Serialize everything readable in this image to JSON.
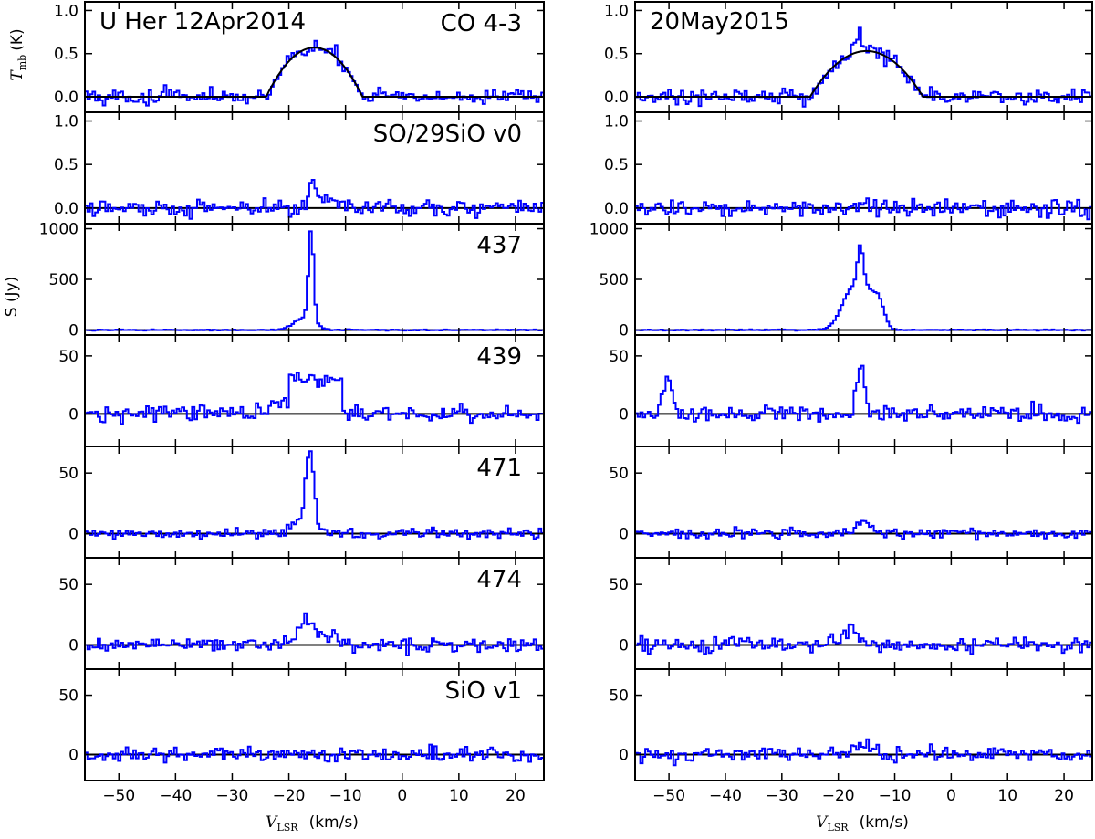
{
  "chart_data": {
    "type": "line",
    "line_color": "#0000ff",
    "fit_color": "#000000",
    "xlim": [
      -56,
      25
    ],
    "x_ticks": [
      -50,
      -40,
      -30,
      -20,
      -10,
      0,
      10,
      20
    ],
    "x_tick_labels": [
      "−50",
      "−40",
      "−30",
      "−20",
      "−10",
      "0",
      "10",
      "20"
    ],
    "xlabel_symbol": "V",
    "xlabel_sub": "LSR",
    "xlabel_unit": "(km/s)",
    "ylabel_tmb_symbol": "T",
    "ylabel_tmb_sub": "mb",
    "ylabel_tmb_unit": "(K)",
    "ylabel_s": "S (Jy)",
    "columns": [
      {
        "title": "U Her 12Apr2014",
        "epoch": "2014-04-12"
      },
      {
        "title": "20May2015",
        "epoch": "2015-05-20"
      }
    ],
    "rows": [
      {
        "label": "CO 4-3",
        "ylim": [
          -0.18,
          1.1
        ],
        "y_ticks": [
          0.0,
          0.5,
          1.0
        ],
        "y_tick_labels": [
          "0.0",
          "0.5",
          "1.0"
        ],
        "zero_line": false,
        "noise": 0.06,
        "series": [
          {
            "profile": [
              {
                "shape": "parabola",
                "center": -15.5,
                "halfwidth": 8.5,
                "peak": 0.57
              }
            ],
            "fit": {
              "center": -15.5,
              "halfwidth": 8.5,
              "peak": 0.57
            }
          },
          {
            "profile": [
              {
                "shape": "parabola",
                "center": -15.0,
                "halfwidth": 10.0,
                "peak": 0.55
              },
              {
                "shape": "gauss",
                "center": -16.5,
                "width": 0.4,
                "peak": 0.25
              }
            ],
            "fit": {
              "center": -15.0,
              "halfwidth": 10.0,
              "peak": 0.53
            }
          }
        ]
      },
      {
        "label": "SO/29SiO v0",
        "ylim": [
          -0.18,
          1.1
        ],
        "y_ticks": [
          0.0,
          0.5,
          1.0
        ],
        "y_tick_labels": [
          "0.0",
          "0.5",
          "1.0"
        ],
        "zero_line": true,
        "noise": 0.07,
        "series": [
          {
            "profile": [
              {
                "shape": "gauss",
                "center": -16.0,
                "width": 0.5,
                "peak": 0.3
              },
              {
                "shape": "gauss",
                "center": -13.0,
                "width": 2.0,
                "peak": 0.12
              }
            ],
            "fit": null
          },
          {
            "profile": [],
            "fit": null
          }
        ]
      },
      {
        "label": "437",
        "ylim": [
          -50,
          1050
        ],
        "y_ticks": [
          0,
          500,
          1000
        ],
        "y_tick_labels": [
          "0",
          "500",
          "1000"
        ],
        "zero_line": true,
        "noise": 4,
        "series": [
          {
            "profile": [
              {
                "shape": "gauss",
                "center": -16.3,
                "width": 0.45,
                "peak": 900
              },
              {
                "shape": "gauss",
                "center": -17.5,
                "width": 1.8,
                "peak": 120
              }
            ],
            "fit": null
          },
          {
            "profile": [
              {
                "shape": "gauss",
                "center": -16.3,
                "width": 0.5,
                "peak": 380
              },
              {
                "shape": "gauss",
                "center": -17.5,
                "width": 2.0,
                "peak": 420
              },
              {
                "shape": "gauss",
                "center": -13.0,
                "width": 1.0,
                "peak": 250
              },
              {
                "shape": "gauss",
                "center": -15.0,
                "width": 1.2,
                "peak": 200
              }
            ],
            "fit": null
          }
        ]
      },
      {
        "label": "439",
        "ylim": [
          -28,
          68
        ],
        "y_ticks": [
          0,
          50
        ],
        "y_tick_labels": [
          "0",
          "50"
        ],
        "zero_line": true,
        "noise": 5,
        "series": [
          {
            "profile": [
              {
                "shape": "box",
                "start": -20.0,
                "end": -10.8,
                "peak": 30
              },
              {
                "shape": "gauss",
                "center": -22.0,
                "width": 1.5,
                "peak": 12
              }
            ],
            "fit": null
          },
          {
            "profile": [
              {
                "shape": "gauss",
                "center": -16.3,
                "width": 0.7,
                "peak": 45
              },
              {
                "shape": "gauss",
                "center": -50.5,
                "width": 0.8,
                "peak": 30
              }
            ],
            "fit": null
          }
        ]
      },
      {
        "label": "471",
        "ylim": [
          -20,
          72
        ],
        "y_ticks": [
          0,
          50
        ],
        "y_tick_labels": [
          "0",
          "50"
        ],
        "zero_line": true,
        "noise": 3,
        "series": [
          {
            "profile": [
              {
                "shape": "gauss",
                "center": -16.5,
                "width": 0.7,
                "peak": 58
              },
              {
                "shape": "gauss",
                "center": -17.5,
                "width": 1.8,
                "peak": 12
              }
            ],
            "fit": null
          },
          {
            "profile": [
              {
                "shape": "gauss",
                "center": -15.5,
                "width": 1.2,
                "peak": 12
              }
            ],
            "fit": null
          }
        ]
      },
      {
        "label": "474",
        "ylim": [
          -20,
          72
        ],
        "y_ticks": [
          0,
          50
        ],
        "y_tick_labels": [
          "0",
          "50"
        ],
        "zero_line": true,
        "noise": 4,
        "series": [
          {
            "profile": [
              {
                "shape": "gauss",
                "center": -17.0,
                "width": 1.5,
                "peak": 20
              },
              {
                "shape": "gauss",
                "center": -13.0,
                "width": 1.2,
                "peak": 8
              }
            ],
            "fit": null
          },
          {
            "profile": [
              {
                "shape": "gauss",
                "center": -18.0,
                "width": 1.5,
                "peak": 12
              }
            ],
            "fit": null
          }
        ]
      },
      {
        "label": "SiO v1",
        "ylim": [
          -22,
          72
        ],
        "y_ticks": [
          0,
          50
        ],
        "y_tick_labels": [
          "0",
          "50"
        ],
        "zero_line": true,
        "noise": 4,
        "series": [
          {
            "profile": [],
            "fit": null
          },
          {
            "profile": [
              {
                "shape": "gauss",
                "center": -16.0,
                "width": 1.5,
                "peak": 8
              }
            ],
            "fit": null
          }
        ]
      }
    ]
  }
}
